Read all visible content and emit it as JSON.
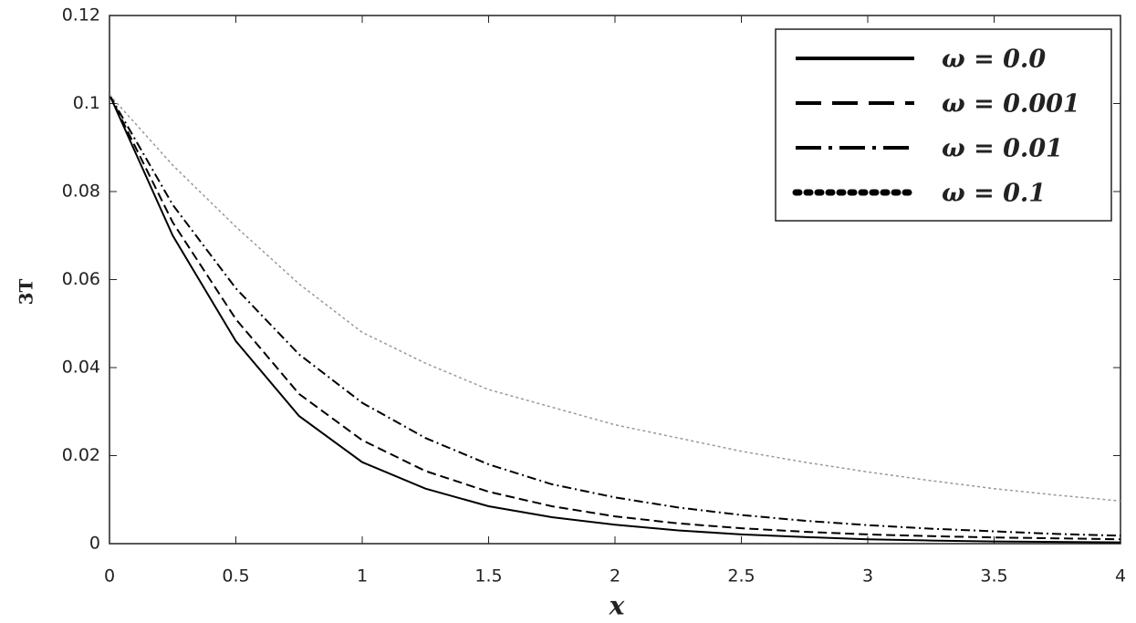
{
  "chart_data": {
    "type": "line",
    "x_label": "x",
    "y_label": "3T",
    "x": [
      0,
      0.25,
      0.5,
      0.75,
      1,
      1.25,
      1.5,
      1.75,
      2,
      2.25,
      2.5,
      2.75,
      3,
      3.25,
      3.5,
      3.75,
      4
    ],
    "series": [
      {
        "name": "ω = 0.0",
        "color": "#000000",
        "dash": "solid",
        "values": [
          0.102,
          0.07,
          0.046,
          0.029,
          0.0185,
          0.0125,
          0.0085,
          0.006,
          0.0043,
          0.003,
          0.0021,
          0.0015,
          0.001,
          0.0007,
          0.0005,
          0.0004,
          0.0003
        ]
      },
      {
        "name": "ω = 0.001",
        "color": "#000000",
        "dash": "dash",
        "values": [
          0.102,
          0.073,
          0.051,
          0.034,
          0.0235,
          0.0165,
          0.0118,
          0.0085,
          0.0062,
          0.0046,
          0.0035,
          0.0027,
          0.0021,
          0.0017,
          0.0014,
          0.0012,
          0.001
        ]
      },
      {
        "name": "ω = 0.01",
        "color": "#000000",
        "dash": "dashdot",
        "values": [
          0.102,
          0.077,
          0.058,
          0.043,
          0.032,
          0.024,
          0.018,
          0.0135,
          0.0105,
          0.0082,
          0.0065,
          0.0052,
          0.0042,
          0.0034,
          0.0028,
          0.0022,
          0.0018
        ]
      },
      {
        "name": "ω = 0.1",
        "color": "#999999",
        "dash": "dot",
        "values": [
          0.102,
          0.086,
          0.072,
          0.059,
          0.048,
          0.041,
          0.035,
          0.031,
          0.027,
          0.024,
          0.021,
          0.0185,
          0.0163,
          0.0143,
          0.0125,
          0.011,
          0.0097
        ]
      }
    ],
    "xlim": [
      0,
      4
    ],
    "xticks": [
      0,
      0.5,
      1,
      1.5,
      2,
      2.5,
      3,
      3.5,
      4
    ],
    "ylim": [
      0,
      0.12
    ],
    "yticks": [
      0,
      0.02,
      0.04,
      0.06,
      0.08,
      0.1,
      0.12
    ],
    "grid": false,
    "legend": "upper right"
  }
}
